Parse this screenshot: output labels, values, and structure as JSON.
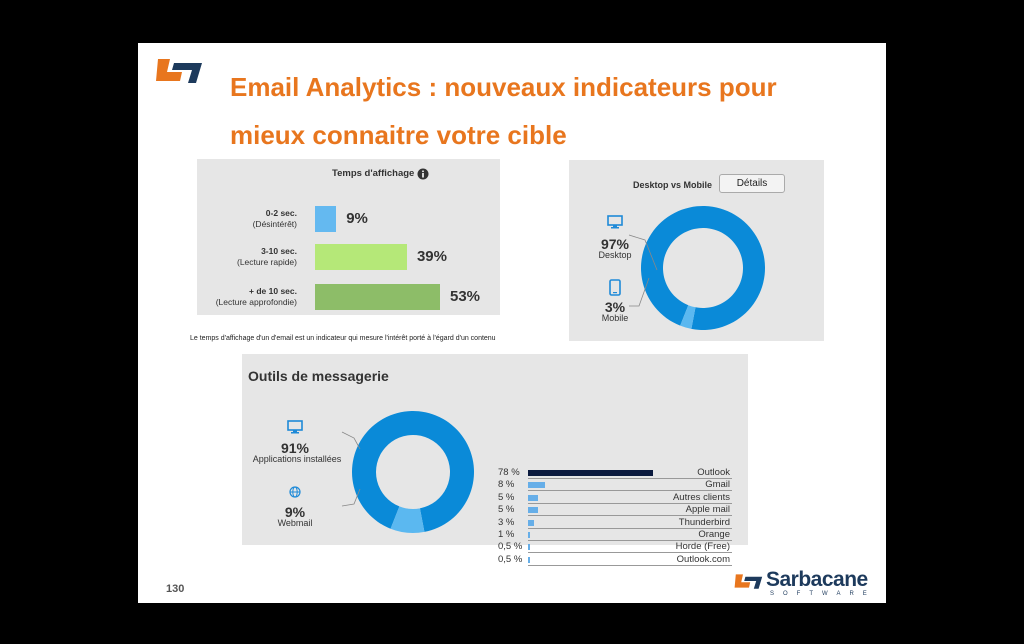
{
  "slide": {
    "title_line1": "Email Analytics : nouveaux indicateurs pour",
    "title_line2": "mieux connaitre votre cible",
    "page_number": "130",
    "caption": "Le temps d'affichage d'un d'email est un indicateur qui mesure l'intérêt porté à l'égard d'un contenu",
    "brand": {
      "name": "Sarbacane",
      "sub": "SOFTWARE"
    }
  },
  "colors": {
    "accent": "#e8761e",
    "donut_blue": "#0a8ad8",
    "donut_light": "#5bb8f0",
    "outlook_bar": "#0b1a3e",
    "small_bar": "#66aee8"
  },
  "chart_data": [
    {
      "type": "bar",
      "title": "Temps d'affichage",
      "categories": [
        {
          "line1": "0-2 sec.",
          "line2": "(Désintérêt)"
        },
        {
          "line1": "3-10 sec.",
          "line2": "(Lecture rapide)"
        },
        {
          "line1": "+ de 10 sec.",
          "line2": "(Lecture approfondie)"
        }
      ],
      "values": [
        9,
        39,
        53
      ],
      "labels": [
        "9%",
        "39%",
        "53%"
      ],
      "colors": [
        "#64b9f0",
        "#b5e878",
        "#8dbd68"
      ]
    },
    {
      "type": "pie",
      "title": "Desktop vs Mobile",
      "button": "Détails",
      "slices": [
        {
          "label": "Desktop",
          "value": 97,
          "pct": "97%"
        },
        {
          "label": "Mobile",
          "value": 3,
          "pct": "3%"
        }
      ]
    },
    {
      "type": "pie",
      "title": "Outils de messagerie",
      "slices": [
        {
          "label": "Applications installées",
          "value": 91,
          "pct": "91%"
        },
        {
          "label": "Webmail",
          "value": 9,
          "pct": "9%"
        }
      ]
    },
    {
      "type": "bar",
      "title": "",
      "categories": [
        "Outlook",
        "Gmail",
        "Autres clients",
        "Apple mail",
        "Thunderbird",
        "Orange",
        "Horde (Free)",
        "Outlook.com"
      ],
      "values": [
        78,
        8,
        5,
        5,
        3,
        1,
        0.5,
        0.5
      ],
      "labels": [
        "78 %",
        "8 %",
        "5 %",
        "5 %",
        "3 %",
        "1 %",
        "0,5 %",
        "0,5 %"
      ]
    }
  ]
}
